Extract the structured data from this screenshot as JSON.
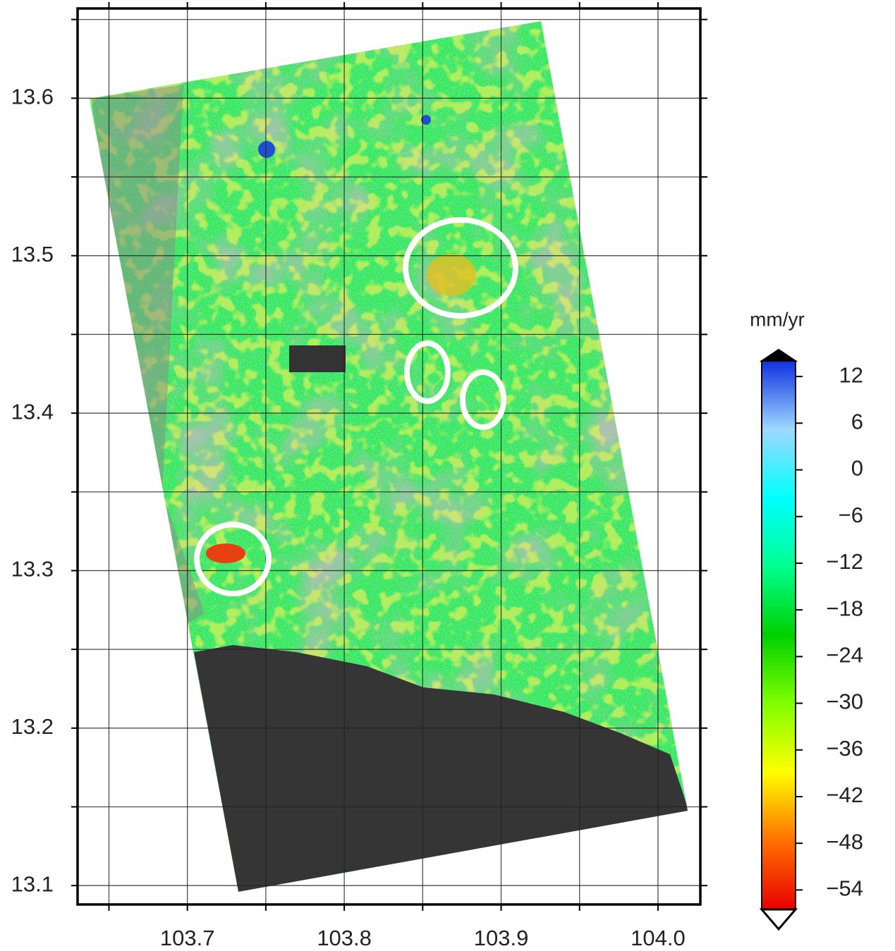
{
  "map": {
    "xlim": [
      103.63,
      104.027
    ],
    "ylim": [
      13.088,
      13.657
    ],
    "xticks": [
      103.7,
      103.8,
      103.9,
      {
        "value": 104,
        "label": "104.0"
      }
    ],
    "yticks": [
      13.1,
      13.2,
      13.3,
      13.4,
      13.5,
      13.6
    ],
    "minor_xticks": [
      103.65,
      103.75,
      103.85,
      103.95
    ],
    "minor_yticks": [
      13.15,
      13.25,
      13.35,
      13.45,
      13.55,
      13.65
    ]
  },
  "colorbar": {
    "label": "mm/yr",
    "lim": [
      -56.5,
      14
    ],
    "ticks": [
      12,
      6,
      0,
      {
        "value": -6,
        "label": "−6"
      },
      {
        "value": -12,
        "label": "−12"
      },
      {
        "value": -18,
        "label": "−18"
      },
      {
        "value": -24,
        "label": "−24"
      },
      {
        "value": -30,
        "label": "−30"
      },
      {
        "value": -36,
        "label": "−36"
      },
      {
        "value": -42,
        "label": "−42"
      },
      {
        "value": -48,
        "label": "−48"
      },
      {
        "value": -54,
        "label": "−54"
      }
    ],
    "colors": [
      "#e80000",
      "#ff7000",
      "#ffff00",
      "#80ff00",
      "#00d000",
      "#00ff90",
      "#00ffff",
      "#9fd8ff",
      "#1030e0"
    ],
    "over_color": "#000000",
    "under_color": "#ffffff"
  }
}
